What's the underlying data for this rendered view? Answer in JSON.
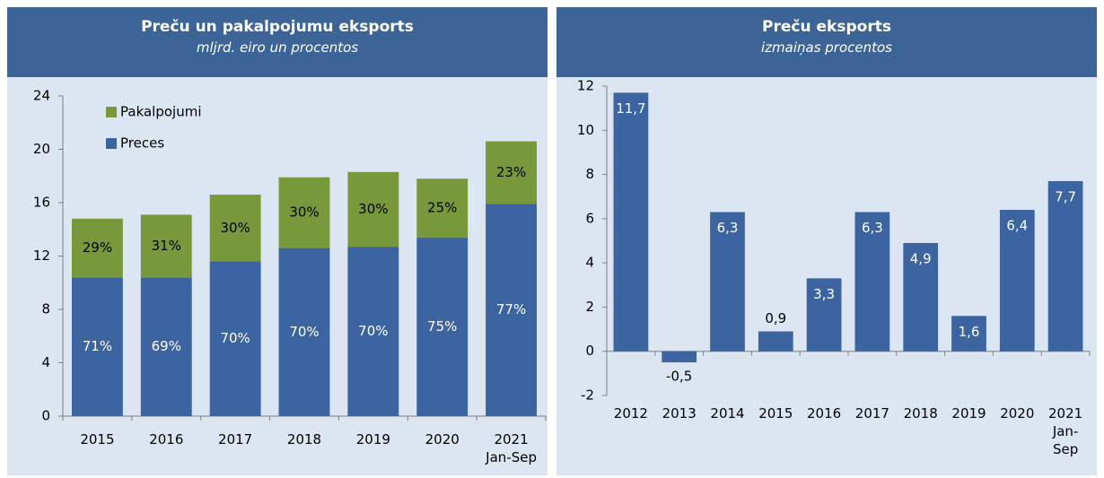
{
  "chart_data": [
    {
      "type": "stacked_bar",
      "title": "Preču un pakalpojumu eksports",
      "subtitle": "mljrd. eiro un procentos",
      "categories": [
        "2015",
        "2016",
        "2017",
        "2018",
        "2019",
        "2020",
        "2021\nJan-Sep"
      ],
      "series": [
        {
          "name": "Preces",
          "color": "#3c64a0",
          "values": [
            10.4,
            10.4,
            11.6,
            12.6,
            12.7,
            13.4,
            15.9
          ],
          "percent_labels": [
            "71%",
            "69%",
            "70%",
            "70%",
            "70%",
            "75%",
            "77%"
          ]
        },
        {
          "name": "Pakalpojumi",
          "color": "#77993b",
          "values": [
            4.4,
            4.7,
            5.0,
            5.3,
            5.6,
            4.4,
            4.7
          ],
          "percent_labels": [
            "29%",
            "31%",
            "30%",
            "30%",
            "30%",
            "25%",
            "23%"
          ]
        }
      ],
      "ylim": [
        0,
        24
      ],
      "yticks": [
        0,
        4,
        8,
        12,
        16,
        20,
        24
      ],
      "legend": "upper left"
    },
    {
      "type": "bar",
      "title": "Preču eksports",
      "subtitle": "izmaiņas procentos",
      "categories": [
        "2012",
        "2013",
        "2014",
        "2015",
        "2016",
        "2017",
        "2018",
        "2019",
        "2020",
        "2021\nJan-\nSep"
      ],
      "values": [
        11.7,
        -0.5,
        6.3,
        0.9,
        3.3,
        6.3,
        4.9,
        1.6,
        6.4,
        7.7
      ],
      "value_labels": [
        "11,7",
        "-0,5",
        "6,3",
        "0,9",
        "3,3",
        "6,3",
        "4,9",
        "1,6",
        "6,4",
        "7,7"
      ],
      "color": "#3c64a0",
      "ylim": [
        -2,
        12
      ],
      "yticks": [
        -2,
        0,
        2,
        4,
        6,
        8,
        10,
        12
      ]
    }
  ]
}
